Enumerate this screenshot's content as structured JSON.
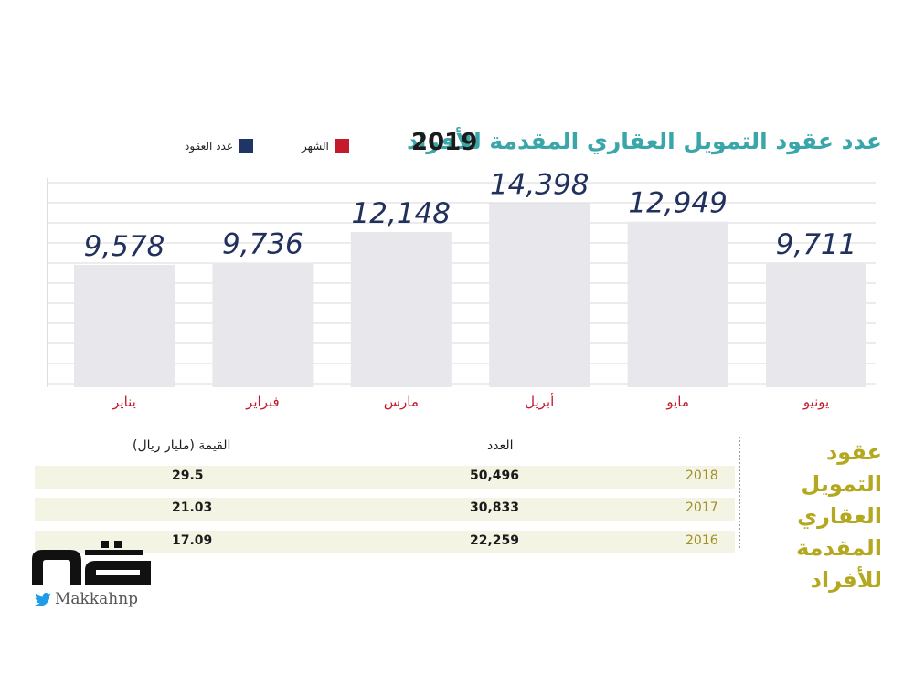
{
  "header": {
    "title": "عدد عقود التمويل العقاري المقدمة للأفراد",
    "year": "2019"
  },
  "legend": [
    {
      "label": "الشهر",
      "color": "#c41a2b"
    },
    {
      "label": "عدد العقود",
      "color": "#1f3566"
    }
  ],
  "chart_data": {
    "type": "bar",
    "title": "عدد عقود التمويل العقاري المقدمة للأفراد 2019",
    "categories": [
      "يناير",
      "فبراير",
      "مارس",
      "أبريل",
      "مايو",
      "يونيو"
    ],
    "category_labels": [
      "يناير",
      "فبراير",
      "مارس",
      "أبريل",
      "مايو",
      "يونيو"
    ],
    "values": [
      9578,
      9736,
      12148,
      14398,
      12949,
      9711
    ],
    "value_labels": [
      "9,578",
      "9,736",
      "12,148",
      "14,398",
      "12,949",
      "9,711"
    ],
    "ylim": [
      0,
      16000
    ],
    "grid": true,
    "colors": {
      "bar": "#e8e8ec",
      "value_text": "#22305d",
      "month_text": "#c41a2b",
      "grid": "#dadada"
    }
  },
  "table": {
    "side_title": "عقود التمويل العقاري المقدمة للأفراد",
    "headers": {
      "count": "العدد",
      "value": "القيمة (مليار ريال)"
    },
    "rows": [
      {
        "year": "2018",
        "count": "50,496",
        "value": "29.5"
      },
      {
        "year": "2017",
        "count": "30,833",
        "value": "21.03"
      },
      {
        "year": "2016",
        "count": "22,259",
        "value": "17.09"
      }
    ],
    "row_color": "#f3f4e4"
  },
  "branding": {
    "logo": "مكة",
    "handle": "Makkahnp",
    "twitter_icon": "twitter-bird-icon"
  }
}
